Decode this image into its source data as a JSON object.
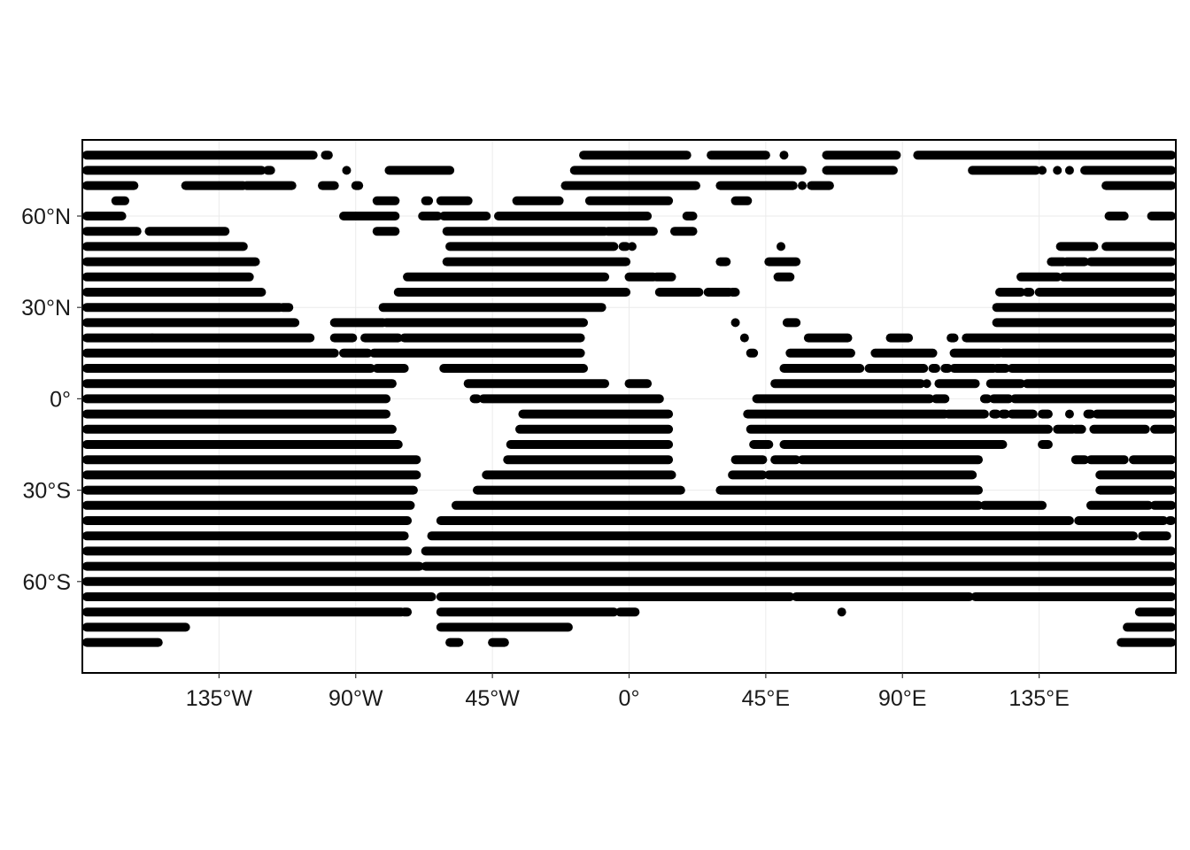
{
  "chart_data": {
    "type": "scatter",
    "title": "",
    "xlabel": "",
    "ylabel": "",
    "xlim": [
      -180,
      180
    ],
    "ylim": [
      -90,
      85
    ],
    "grid": true,
    "legend": "none",
    "point_color": "#000000",
    "x_ticks": [
      {
        "value": -135,
        "label": "135°W"
      },
      {
        "value": -90,
        "label": "90°W"
      },
      {
        "value": -45,
        "label": "45°W"
      },
      {
        "value": 0,
        "label": "0°"
      },
      {
        "value": 45,
        "label": "45°E"
      },
      {
        "value": 90,
        "label": "90°E"
      },
      {
        "value": 135,
        "label": "135°E"
      }
    ],
    "y_ticks": [
      {
        "value": 60,
        "label": "60°N"
      },
      {
        "value": 30,
        "label": "30°N"
      },
      {
        "value": 0,
        "label": "0°"
      },
      {
        "value": -30,
        "label": "30°S"
      },
      {
        "value": -60,
        "label": "60°S"
      }
    ],
    "rows": [
      {
        "lat": 80,
        "segments": [
          [
            -180,
            -104
          ],
          [
            -100,
            -99
          ],
          [
            -15,
            19
          ],
          [
            27,
            45
          ],
          [
            51,
            51
          ],
          [
            65,
            88
          ],
          [
            95,
            180
          ]
        ]
      },
      {
        "lat": 75,
        "segments": [
          [
            -180,
            -121
          ],
          [
            -119,
            -118
          ],
          [
            -93,
            -93
          ],
          [
            -79,
            -59
          ],
          [
            -18,
            57
          ],
          [
            65,
            87
          ],
          [
            113,
            134
          ],
          [
            136,
            136
          ],
          [
            141,
            141
          ],
          [
            145,
            145
          ],
          [
            150,
            180
          ]
        ]
      },
      {
        "lat": 70,
        "segments": [
          [
            -180,
            -163
          ],
          [
            -146,
            -127
          ],
          [
            -126,
            -111
          ],
          [
            -101,
            -97
          ],
          [
            -90,
            -89
          ],
          [
            -21,
            22
          ],
          [
            30,
            54
          ],
          [
            57,
            57
          ],
          [
            60,
            66
          ],
          [
            157,
            180
          ]
        ]
      },
      {
        "lat": 65,
        "segments": [
          [
            -169,
            -166
          ],
          [
            -83,
            -77
          ],
          [
            -67,
            -66
          ],
          [
            -62,
            -53
          ],
          [
            -37,
            -23
          ],
          [
            -13,
            13
          ],
          [
            35,
            39
          ]
        ]
      },
      {
        "lat": 60,
        "segments": [
          [
            -180,
            -167
          ],
          [
            -94,
            -77
          ],
          [
            -68,
            -63
          ],
          [
            -61,
            -47
          ],
          [
            -43,
            6
          ],
          [
            19,
            21
          ],
          [
            158,
            163
          ],
          [
            172,
            180
          ]
        ]
      },
      {
        "lat": 55,
        "segments": [
          [
            -180,
            -162
          ],
          [
            -158,
            -133
          ],
          [
            -83,
            -77
          ],
          [
            -60,
            -8
          ],
          [
            -7,
            8
          ],
          [
            15,
            21
          ]
        ]
      },
      {
        "lat": 50,
        "segments": [
          [
            -180,
            -127
          ],
          [
            -59,
            -5
          ],
          [
            -2,
            -1
          ],
          [
            1,
            1
          ],
          [
            50,
            50
          ],
          [
            142,
            153
          ],
          [
            157,
            180
          ]
        ]
      },
      {
        "lat": 45,
        "segments": [
          [
            -180,
            -123
          ],
          [
            -60,
            -1
          ],
          [
            30,
            32
          ],
          [
            46,
            55
          ],
          [
            139,
            143
          ],
          [
            144,
            150
          ],
          [
            152,
            180
          ]
        ]
      },
      {
        "lat": 40,
        "segments": [
          [
            -180,
            -125
          ],
          [
            -73,
            -8
          ],
          [
            0,
            8
          ],
          [
            9,
            14
          ],
          [
            49,
            53
          ],
          [
            129,
            141
          ],
          [
            143,
            180
          ]
        ]
      },
      {
        "lat": 35,
        "segments": [
          [
            -180,
            -121
          ],
          [
            -76,
            -1
          ],
          [
            10,
            23
          ],
          [
            26,
            33
          ],
          [
            34,
            35
          ],
          [
            122,
            129
          ],
          [
            131,
            132
          ],
          [
            135,
            180
          ]
        ]
      },
      {
        "lat": 30,
        "segments": [
          [
            -180,
            -115
          ],
          [
            -114,
            -112
          ],
          [
            -81,
            -9
          ],
          [
            121,
            180
          ]
        ]
      },
      {
        "lat": 25,
        "segments": [
          [
            -180,
            -110
          ],
          [
            -97,
            -81
          ],
          [
            -80,
            -15
          ],
          [
            35,
            35
          ],
          [
            52,
            55
          ],
          [
            121,
            180
          ]
        ]
      },
      {
        "lat": 20,
        "segments": [
          [
            -180,
            -157
          ],
          [
            -157,
            -105
          ],
          [
            -97,
            -91
          ],
          [
            -87,
            -76
          ],
          [
            -74,
            -16
          ],
          [
            38,
            38
          ],
          [
            59,
            72
          ],
          [
            86,
            92
          ],
          [
            106,
            107
          ],
          [
            111,
            180
          ]
        ]
      },
      {
        "lat": 15,
        "segments": [
          [
            -180,
            -97
          ],
          [
            -94,
            -86
          ],
          [
            -84,
            -16
          ],
          [
            40,
            41
          ],
          [
            53,
            73
          ],
          [
            81,
            100
          ],
          [
            107,
            122
          ],
          [
            123,
            180
          ]
        ]
      },
      {
        "lat": 10,
        "segments": [
          [
            -180,
            -85
          ],
          [
            -83,
            -74
          ],
          [
            -61,
            -15
          ],
          [
            51,
            76
          ],
          [
            79,
            97
          ],
          [
            100,
            101
          ],
          [
            104,
            105
          ],
          [
            107,
            120
          ],
          [
            121,
            124
          ],
          [
            126,
            180
          ]
        ]
      },
      {
        "lat": 5,
        "segments": [
          [
            -180,
            -78
          ],
          [
            -53,
            -8
          ],
          [
            0,
            6
          ],
          [
            48,
            96
          ],
          [
            98,
            98
          ],
          [
            102,
            114
          ],
          [
            119,
            129
          ],
          [
            131,
            180
          ]
        ]
      },
      {
        "lat": 0,
        "segments": [
          [
            -180,
            -80
          ],
          [
            -51,
            -50
          ],
          [
            -48,
            10
          ],
          [
            42,
            99
          ],
          [
            101,
            104
          ],
          [
            117,
            118
          ],
          [
            120,
            125
          ],
          [
            127,
            180
          ]
        ]
      },
      {
        "lat": -5,
        "segments": [
          [
            -180,
            -80
          ],
          [
            -35,
            13
          ],
          [
            39,
            104
          ],
          [
            105,
            117
          ],
          [
            120,
            121
          ],
          [
            123,
            124
          ],
          [
            126,
            133
          ],
          [
            136,
            138
          ],
          [
            145,
            145
          ],
          [
            151,
            152
          ],
          [
            154,
            180
          ]
        ]
      },
      {
        "lat": -10,
        "segments": [
          [
            -180,
            -78
          ],
          [
            -36,
            13
          ],
          [
            40,
            138
          ],
          [
            141,
            146
          ],
          [
            147,
            149
          ],
          [
            153,
            170
          ],
          [
            173,
            180
          ]
        ]
      },
      {
        "lat": -15,
        "segments": [
          [
            -180,
            -76
          ],
          [
            -39,
            13
          ],
          [
            41,
            46
          ],
          [
            51,
            123
          ],
          [
            136,
            138
          ]
        ]
      },
      {
        "lat": -20,
        "segments": [
          [
            -180,
            -70
          ],
          [
            -40,
            13
          ],
          [
            35,
            44
          ],
          [
            48,
            55
          ],
          [
            57,
            115
          ],
          [
            147,
            150
          ],
          [
            152,
            163
          ],
          [
            166,
            180
          ]
        ]
      },
      {
        "lat": -25,
        "segments": [
          [
            -180,
            -70
          ],
          [
            -47,
            14
          ],
          [
            34,
            44
          ],
          [
            46,
            113
          ],
          [
            155,
            180
          ]
        ]
      },
      {
        "lat": -30,
        "segments": [
          [
            -180,
            -71
          ],
          [
            -50,
            17
          ],
          [
            30,
            115
          ],
          [
            155,
            180
          ]
        ]
      },
      {
        "lat": -35,
        "segments": [
          [
            -180,
            -72
          ],
          [
            -57,
            115
          ],
          [
            117,
            136
          ],
          [
            152,
            171
          ],
          [
            173,
            180
          ]
        ]
      },
      {
        "lat": -40,
        "segments": [
          [
            -180,
            -73
          ],
          [
            -62,
            145
          ],
          [
            148,
            176
          ],
          [
            178,
            180
          ]
        ]
      },
      {
        "lat": -45,
        "segments": [
          [
            -180,
            -74
          ],
          [
            -65,
            166
          ],
          [
            169,
            177
          ]
        ]
      },
      {
        "lat": -50,
        "segments": [
          [
            -180,
            -73
          ],
          [
            -67,
            180
          ]
        ]
      },
      {
        "lat": -55,
        "segments": [
          [
            -180,
            -69
          ],
          [
            -67,
            180
          ]
        ]
      },
      {
        "lat": -60,
        "segments": [
          [
            -180,
            -46
          ],
          [
            -45,
            180
          ]
        ]
      },
      {
        "lat": -65,
        "segments": [
          [
            -180,
            -65
          ],
          [
            -62,
            53
          ],
          [
            55,
            112
          ],
          [
            114,
            180
          ]
        ]
      },
      {
        "lat": -70,
        "segments": [
          [
            -180,
            -75
          ],
          [
            -74,
            -73
          ],
          [
            -62,
            -5
          ],
          [
            -3,
            2
          ],
          [
            70,
            70
          ],
          [
            168,
            180
          ]
        ]
      },
      {
        "lat": -75,
        "segments": [
          [
            -180,
            -146
          ],
          [
            -62,
            -20
          ],
          [
            164,
            180
          ]
        ]
      },
      {
        "lat": -80,
        "segments": [
          [
            -180,
            -155
          ],
          [
            -59,
            -56
          ],
          [
            -45,
            -41
          ],
          [
            162,
            180
          ]
        ]
      }
    ]
  }
}
